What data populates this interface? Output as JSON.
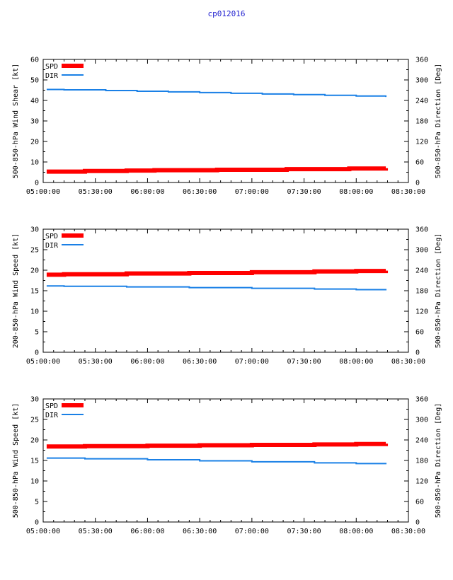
{
  "title": "cp012016",
  "colors": {
    "spd": "#ff0000",
    "dir": "#1a80e6",
    "title": "#1f1fcf",
    "axis": "#000000"
  },
  "chart_data": [
    {
      "type": "line",
      "title": "cp012016",
      "xlabel": "",
      "ylabel": "500-850-hPa Wind Shear [kt]",
      "y2label": "500-850-hPa Direction [Deg]",
      "xlim": [
        "05:00:00",
        "08:30:00"
      ],
      "x_ticks": [
        "05:00:00",
        "05:30:00",
        "06:00:00",
        "06:30:00",
        "07:00:00",
        "07:30:00",
        "08:00:00",
        "08:30:00"
      ],
      "ylim": [
        0,
        60
      ],
      "y_ticks": [
        0,
        10,
        20,
        30,
        40,
        50,
        60
      ],
      "y2lim": [
        0,
        360
      ],
      "y2_ticks": [
        0,
        60,
        120,
        180,
        240,
        300,
        360
      ],
      "legend": "top-left",
      "grid": false,
      "series": [
        {
          "name": "SPD",
          "axis": "left",
          "x": [
            "05:02:00",
            "05:24:00",
            "05:48:00",
            "06:04:00",
            "06:40:00",
            "07:20:00",
            "07:56:00",
            "08:17:00"
          ],
          "values": [
            5.3,
            5.6,
            5.8,
            6.0,
            6.2,
            6.5,
            6.8,
            7.0
          ]
        },
        {
          "name": "DIR",
          "axis": "right",
          "x": [
            "05:02:00",
            "05:12:00",
            "05:36:00",
            "05:54:00",
            "06:12:00",
            "06:30:00",
            "06:48:00",
            "07:06:00",
            "07:24:00",
            "07:42:00",
            "08:00:00",
            "08:17:00"
          ],
          "values": [
            272,
            271,
            269,
            267,
            265,
            263,
            261,
            259,
            257,
            255,
            253,
            250
          ]
        }
      ]
    },
    {
      "type": "line",
      "title": "",
      "xlabel": "",
      "ylabel": "200-850-hPa Wind Speed [kt]",
      "y2label": "500-850-hPa Direction [Deg]",
      "xlim": [
        "05:00:00",
        "08:30:00"
      ],
      "x_ticks": [
        "05:00:00",
        "05:30:00",
        "06:00:00",
        "06:30:00",
        "07:00:00",
        "07:30:00",
        "08:00:00",
        "08:30:00"
      ],
      "ylim": [
        0,
        30
      ],
      "y_ticks": [
        0,
        5,
        10,
        15,
        20,
        25,
        30
      ],
      "y2lim": [
        0,
        360
      ],
      "y2_ticks": [
        0,
        60,
        120,
        180,
        240,
        300,
        360
      ],
      "legend": "top-left",
      "grid": false,
      "series": [
        {
          "name": "SPD",
          "axis": "left",
          "x": [
            "05:02:00",
            "05:12:00",
            "05:48:00",
            "06:24:00",
            "07:00:00",
            "07:36:00",
            "08:00:00",
            "08:17:00"
          ],
          "values": [
            18.9,
            19.0,
            19.2,
            19.3,
            19.5,
            19.7,
            19.8,
            19.9
          ]
        },
        {
          "name": "DIR",
          "axis": "right",
          "x": [
            "05:02:00",
            "05:12:00",
            "05:48:00",
            "06:24:00",
            "07:00:00",
            "07:36:00",
            "08:00:00",
            "08:17:00"
          ],
          "values": [
            194,
            193,
            191,
            189,
            187,
            185,
            183,
            181
          ]
        }
      ]
    },
    {
      "type": "line",
      "title": "",
      "xlabel": "",
      "ylabel": "500-850-hPa Wind Speed [kt]",
      "y2label": "500-850-hPa Direction [Deg]",
      "xlim": [
        "05:00:00",
        "08:30:00"
      ],
      "x_ticks": [
        "05:00:00",
        "05:30:00",
        "06:00:00",
        "06:30:00",
        "07:00:00",
        "07:30:00",
        "08:00:00",
        "08:30:00"
      ],
      "ylim": [
        0,
        30
      ],
      "y_ticks": [
        0,
        5,
        10,
        15,
        20,
        25,
        30
      ],
      "y2lim": [
        0,
        360
      ],
      "y2_ticks": [
        0,
        60,
        120,
        180,
        240,
        300,
        360
      ],
      "legend": "top-left",
      "grid": false,
      "series": [
        {
          "name": "SPD",
          "axis": "left",
          "x": [
            "05:02:00",
            "05:24:00",
            "06:00:00",
            "06:30:00",
            "07:00:00",
            "07:36:00",
            "08:00:00",
            "08:17:00"
          ],
          "values": [
            18.4,
            18.5,
            18.6,
            18.7,
            18.8,
            18.9,
            19.0,
            19.1
          ]
        },
        {
          "name": "DIR",
          "axis": "right",
          "x": [
            "05:02:00",
            "05:24:00",
            "06:00:00",
            "06:30:00",
            "07:00:00",
            "07:36:00",
            "08:00:00",
            "08:17:00"
          ],
          "values": [
            187,
            185,
            182,
            179,
            176,
            173,
            171,
            169
          ]
        }
      ]
    }
  ]
}
